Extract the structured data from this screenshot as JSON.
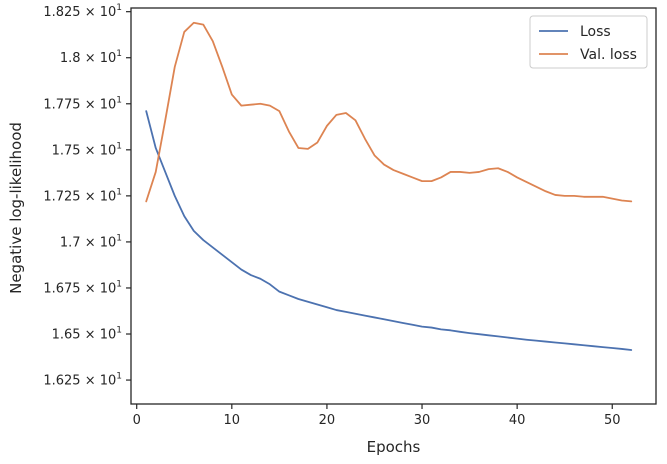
{
  "chart_data": {
    "type": "line",
    "title": "",
    "xlabel": "Epochs",
    "ylabel": "Negative log-likelihood",
    "xlim": [
      -0.6,
      54.6
    ],
    "ylim": [
      16.12,
      18.27
    ],
    "grid": false,
    "legend_position": "top-right",
    "x_ticks": [
      0,
      10,
      20,
      30,
      40,
      50
    ],
    "x_tick_labels": [
      "0",
      "10",
      "20",
      "30",
      "40",
      "50"
    ],
    "y_ticks": [
      16.25,
      16.5,
      16.75,
      17.0,
      17.25,
      17.5,
      17.75,
      18.0,
      18.25
    ],
    "y_tick_labels": [
      {
        "mantissa": "1.625",
        "base": "10",
        "exp": "1"
      },
      {
        "mantissa": "1.65",
        "base": "10",
        "exp": "1"
      },
      {
        "mantissa": "1.675",
        "base": "10",
        "exp": "1"
      },
      {
        "mantissa": "1.7",
        "base": "10",
        "exp": "1"
      },
      {
        "mantissa": "1.725",
        "base": "10",
        "exp": "1"
      },
      {
        "mantissa": "1.75",
        "base": "10",
        "exp": "1"
      },
      {
        "mantissa": "1.775",
        "base": "10",
        "exp": "1"
      },
      {
        "mantissa": "1.8",
        "base": "10",
        "exp": "1"
      },
      {
        "mantissa": "1.825",
        "base": "10",
        "exp": "1"
      }
    ],
    "x": [
      1,
      2,
      3,
      4,
      5,
      6,
      7,
      8,
      9,
      10,
      11,
      12,
      13,
      14,
      15,
      16,
      17,
      18,
      19,
      20,
      21,
      22,
      23,
      24,
      25,
      26,
      27,
      28,
      29,
      30,
      31,
      32,
      33,
      34,
      35,
      36,
      37,
      38,
      39,
      40,
      41,
      42,
      43,
      44,
      45,
      46,
      47,
      48,
      49,
      50,
      51,
      52
    ],
    "series": [
      {
        "name": "Loss",
        "color": "#4c72b0",
        "values": [
          17.71,
          17.51,
          17.38,
          17.25,
          17.14,
          17.06,
          17.01,
          16.97,
          16.93,
          16.89,
          16.85,
          16.82,
          16.8,
          16.77,
          16.73,
          16.71,
          16.69,
          16.675,
          16.66,
          16.645,
          16.63,
          16.62,
          16.61,
          16.6,
          16.59,
          16.58,
          16.57,
          16.56,
          16.55,
          16.54,
          16.535,
          16.525,
          16.52,
          16.512,
          16.505,
          16.499,
          16.493,
          16.487,
          16.481,
          16.475,
          16.469,
          16.464,
          16.459,
          16.454,
          16.449,
          16.444,
          16.439,
          16.434,
          16.429,
          16.424,
          16.419,
          16.413
        ]
      },
      {
        "name": "Val. loss",
        "color": "#dd8452",
        "values": [
          17.22,
          17.38,
          17.66,
          17.95,
          18.14,
          18.19,
          18.18,
          18.09,
          17.95,
          17.8,
          17.74,
          17.745,
          17.75,
          17.74,
          17.71,
          17.6,
          17.51,
          17.505,
          17.54,
          17.63,
          17.69,
          17.7,
          17.66,
          17.56,
          17.47,
          17.42,
          17.39,
          17.37,
          17.35,
          17.33,
          17.33,
          17.35,
          17.38,
          17.38,
          17.375,
          17.38,
          17.395,
          17.4,
          17.38,
          17.35,
          17.325,
          17.3,
          17.275,
          17.255,
          17.25,
          17.25,
          17.245,
          17.245,
          17.245,
          17.235,
          17.225,
          17.22
        ]
      }
    ]
  }
}
